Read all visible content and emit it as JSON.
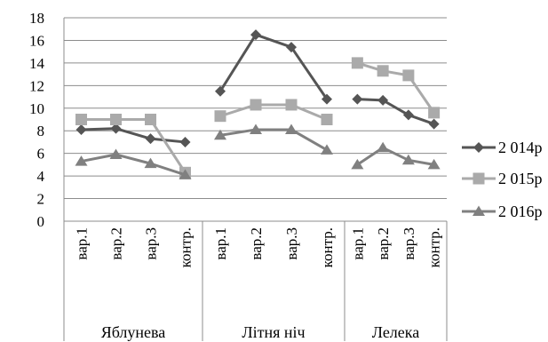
{
  "chart_data": {
    "type": "line",
    "title": "",
    "xlabel": "",
    "ylabel": "",
    "ylim": [
      0,
      18
    ],
    "yticks": [
      0,
      2,
      4,
      6,
      8,
      10,
      12,
      14,
      16,
      18
    ],
    "grid": true,
    "legend": "right",
    "groups": [
      {
        "name": "Яблунева",
        "categories": [
          "вар.1",
          "вар.2",
          "вар.3",
          "контр."
        ]
      },
      {
        "name": "Літня ніч",
        "categories": [
          "вар.1",
          "вар.2",
          "вар.3",
          "контр."
        ]
      },
      {
        "name": "Лелека",
        "categories": [
          "вар.1",
          "вар.2",
          "вар.3",
          "контр."
        ]
      }
    ],
    "series": [
      {
        "name": "2 014р",
        "marker": "diamond",
        "color": "#555555",
        "values": [
          [
            8.1,
            8.2,
            7.3,
            7.0
          ],
          [
            11.5,
            16.5,
            15.4,
            10.8
          ],
          [
            10.8,
            10.7,
            9.4,
            8.6
          ]
        ]
      },
      {
        "name": "2 015р",
        "marker": "square",
        "color": "#aaaaaa",
        "values": [
          [
            9.0,
            9.0,
            9.0,
            4.3
          ],
          [
            9.3,
            10.3,
            10.3,
            9.0
          ],
          [
            14.0,
            13.3,
            12.9,
            9.6
          ]
        ]
      },
      {
        "name": "2 016р",
        "marker": "triangle",
        "color": "#808080",
        "values": [
          [
            5.3,
            5.9,
            5.1,
            4.1
          ],
          [
            7.6,
            8.1,
            8.1,
            6.3
          ],
          [
            5.0,
            6.5,
            5.4,
            5.0
          ]
        ]
      }
    ]
  }
}
